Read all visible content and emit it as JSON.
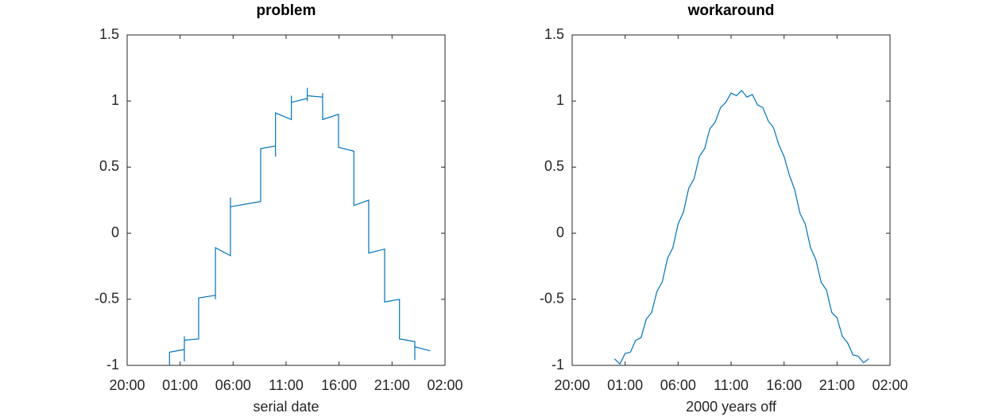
{
  "chart_data": [
    {
      "type": "line",
      "title": "problem",
      "xlabel": "serial date",
      "color": "#0072bd",
      "xlim": [
        -4,
        26
      ],
      "ylim": [
        -1,
        1.5
      ],
      "xticks": [
        {
          "value": -4,
          "label": "20:00"
        },
        {
          "value": 1,
          "label": "01:00"
        },
        {
          "value": 6,
          "label": "06:00"
        },
        {
          "value": 11,
          "label": "11:00"
        },
        {
          "value": 16,
          "label": "16:00"
        },
        {
          "value": 21,
          "label": "21:00"
        },
        {
          "value": 26,
          "label": "02:00"
        }
      ],
      "yticks": [
        -1,
        -0.5,
        0,
        0.5,
        1,
        1.5
      ],
      "x": [
        0,
        0,
        1.4,
        1.4,
        1.4,
        1.4,
        2.75,
        2.75,
        4.33,
        4.33,
        4.33,
        5.75,
        5.75,
        5.75,
        8.6,
        8.6,
        10,
        10,
        10,
        11.5,
        11.5,
        11.5,
        13,
        13,
        13,
        13,
        14.45,
        14.45,
        14.45,
        15.95,
        15.95,
        17.4,
        17.4,
        18.8,
        18.8,
        20.3,
        20.3,
        21.7,
        21.7,
        23.15,
        23.15,
        23.15,
        24.6
      ],
      "values": [
        -1,
        -0.9,
        -0.88,
        -0.97,
        -0.78,
        -0.81,
        -0.8,
        -0.49,
        -0.47,
        -0.5,
        -0.11,
        -0.17,
        0.27,
        0.2,
        0.24,
        0.64,
        0.66,
        0.58,
        0.91,
        0.86,
        1.04,
        0.99,
        1.02,
        1.1,
        1.0,
        1.04,
        1.03,
        1.06,
        0.86,
        0.9,
        0.65,
        0.62,
        0.21,
        0.25,
        -0.15,
        -0.12,
        -0.52,
        -0.5,
        -0.8,
        -0.82,
        -0.96,
        -0.86,
        -0.89
      ]
    },
    {
      "type": "line",
      "title": "workaround",
      "xlabel": "2000 years off",
      "color": "#0072bd",
      "xlim": [
        -4,
        26
      ],
      "ylim": [
        -1,
        1.5
      ],
      "xticks": [
        {
          "value": -4,
          "label": "20:00"
        },
        {
          "value": 1,
          "label": "01:00"
        },
        {
          "value": 6,
          "label": "06:00"
        },
        {
          "value": 11,
          "label": "11:00"
        },
        {
          "value": 16,
          "label": "16:00"
        },
        {
          "value": 21,
          "label": "21:00"
        },
        {
          "value": 26,
          "label": "02:00"
        }
      ],
      "yticks": [
        -1,
        -0.5,
        0,
        0.5,
        1,
        1.5
      ],
      "x": [
        0,
        0.5,
        1,
        1.5,
        2,
        2.5,
        3,
        3.5,
        4,
        4.5,
        5,
        5.5,
        6,
        6.5,
        7,
        7.5,
        8,
        8.5,
        9,
        9.5,
        10,
        10.5,
        11,
        11.5,
        12,
        12.5,
        13,
        13.5,
        14,
        14.5,
        15,
        15.5,
        16,
        16.5,
        17,
        17.5,
        18,
        18.5,
        19,
        19.5,
        20,
        20.5,
        21,
        21.5,
        22,
        22.5,
        23,
        23.5,
        24
      ],
      "values": [
        -0.95,
        -0.99,
        -0.91,
        -0.9,
        -0.81,
        -0.79,
        -0.65,
        -0.6,
        -0.44,
        -0.37,
        -0.19,
        -0.11,
        0.07,
        0.16,
        0.34,
        0.41,
        0.58,
        0.64,
        0.79,
        0.84,
        0.95,
        0.99,
        1.06,
        1.04,
        1.08,
        1.03,
        1.05,
        0.97,
        0.95,
        0.85,
        0.8,
        0.67,
        0.58,
        0.44,
        0.33,
        0.15,
        0.07,
        -0.11,
        -0.2,
        -0.37,
        -0.43,
        -0.6,
        -0.64,
        -0.78,
        -0.83,
        -0.92,
        -0.93,
        -0.98,
        -0.95
      ]
    }
  ]
}
